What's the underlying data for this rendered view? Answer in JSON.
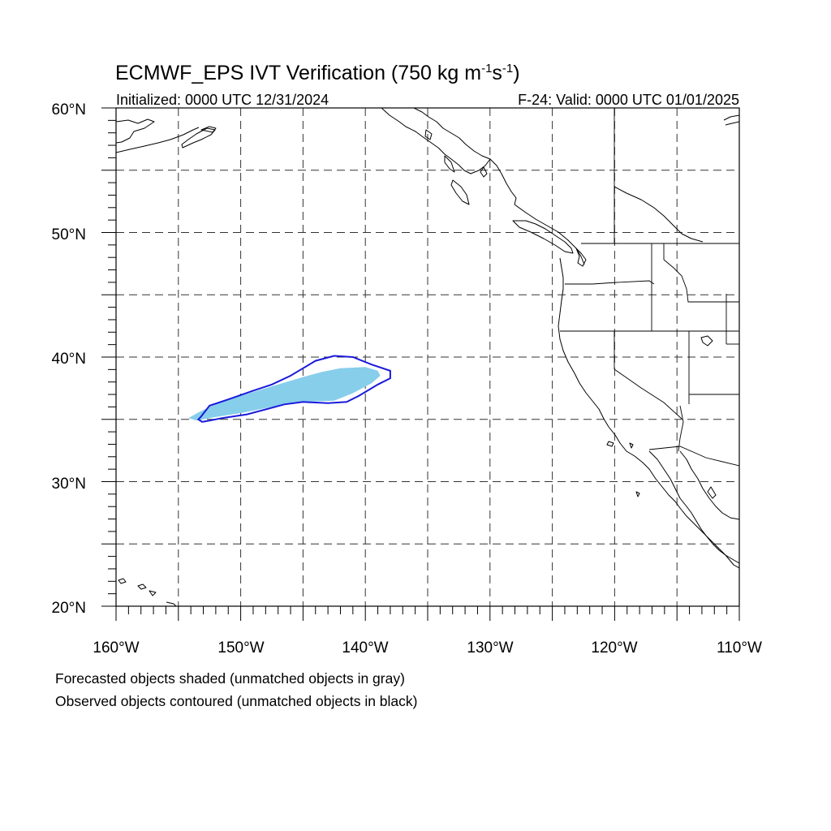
{
  "title": {
    "main": "ECMWF_EPS IVT Verification (750 kg m",
    "exp1": "-1",
    "mid": "s",
    "exp2": "-1",
    "close": ")"
  },
  "subtitle": {
    "initialized": "Initialized: 0000 UTC 12/31/2024",
    "valid": "F-24: Valid: 0000 UTC 01/01/2025"
  },
  "map": {
    "lon_range": [
      -160,
      -110
    ],
    "lat_range": [
      20,
      60
    ],
    "lon_labels": [
      "160°W",
      "150°W",
      "140°W",
      "130°W",
      "120°W",
      "110°W"
    ],
    "lat_labels": [
      "60°N",
      "50°N",
      "40°N",
      "30°N",
      "20°N"
    ],
    "grid_spacing_deg": 5,
    "gridlines": "dashed"
  },
  "forecast_object": {
    "color": "#87ceeb",
    "matched": true,
    "outline": [
      [
        -154.2,
        35.1
      ],
      [
        -153.5,
        35.5
      ],
      [
        -152.5,
        36.0
      ],
      [
        -151.0,
        36.6
      ],
      [
        -149.0,
        37.2
      ],
      [
        -147.0,
        37.8
      ],
      [
        -145.0,
        38.4
      ],
      [
        -143.5,
        38.8
      ],
      [
        -142.0,
        39.1
      ],
      [
        -140.0,
        39.2
      ],
      [
        -139.0,
        38.9
      ],
      [
        -138.8,
        38.5
      ],
      [
        -139.5,
        37.9
      ],
      [
        -141.0,
        37.1
      ],
      [
        -142.5,
        36.5
      ],
      [
        -145.0,
        36.4
      ],
      [
        -147.5,
        36.0
      ],
      [
        -150.0,
        35.5
      ],
      [
        -152.0,
        35.2
      ],
      [
        -153.5,
        34.9
      ],
      [
        -154.2,
        35.1
      ]
    ]
  },
  "observed_object": {
    "color": "#1a1adb",
    "matched": true,
    "outline": [
      [
        -153.2,
        35.2
      ],
      [
        -152.5,
        36.1
      ],
      [
        -151.0,
        36.6
      ],
      [
        -149.0,
        37.3
      ],
      [
        -147.5,
        37.8
      ],
      [
        -146.0,
        38.5
      ],
      [
        -145.0,
        39.1
      ],
      [
        -144.0,
        39.7
      ],
      [
        -142.5,
        40.1
      ],
      [
        -141.0,
        40.0
      ],
      [
        -139.5,
        39.4
      ],
      [
        -138.0,
        38.9
      ],
      [
        -138.0,
        38.3
      ],
      [
        -139.0,
        37.8
      ],
      [
        -140.5,
        36.9
      ],
      [
        -141.5,
        36.4
      ],
      [
        -143.0,
        36.3
      ],
      [
        -145.0,
        36.4
      ],
      [
        -146.5,
        36.2
      ],
      [
        -148.0,
        35.8
      ],
      [
        -149.5,
        35.4
      ],
      [
        -151.5,
        35.1
      ],
      [
        -152.5,
        34.9
      ],
      [
        -153.1,
        34.8
      ],
      [
        -153.4,
        35.0
      ],
      [
        -153.2,
        35.2
      ]
    ]
  },
  "legend_notes": {
    "forecast": "Forecasted objects shaded (unmatched objects in gray)",
    "observed": "Observed objects contoured (unmatched objects in black)"
  }
}
